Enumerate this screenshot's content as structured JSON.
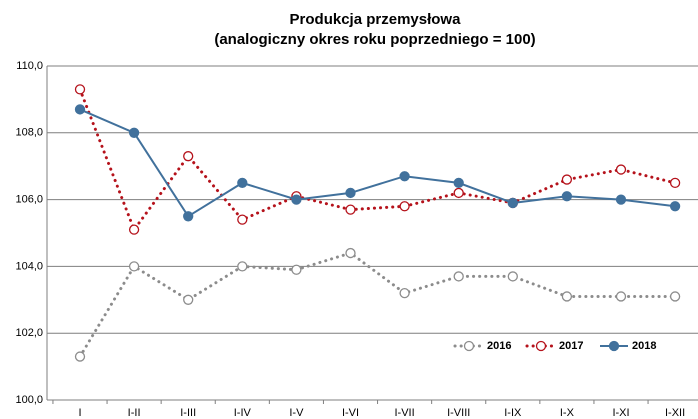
{
  "chart_data": {
    "type": "line",
    "title": "Produkcja przemysłowa",
    "subtitle": "(analogiczny okres roku poprzedniego = 100)",
    "categories": [
      "I",
      "I-II",
      "I-III",
      "I-IV",
      "I-V",
      "I-VI",
      "I-VII",
      "I-VIII",
      "I-IX",
      "I-X",
      "I-XI",
      "I-XII"
    ],
    "series": [
      {
        "name": "2016",
        "color": "#8c8c8c",
        "style": "dotted",
        "filled": false,
        "values": [
          101.3,
          104.0,
          103.0,
          104.0,
          103.9,
          104.4,
          103.2,
          103.7,
          103.7,
          103.1,
          103.1,
          103.1
        ]
      },
      {
        "name": "2017",
        "color": "#b5121b",
        "style": "dotted",
        "filled": false,
        "values": [
          109.3,
          105.1,
          107.3,
          105.4,
          106.1,
          105.7,
          105.8,
          106.2,
          105.9,
          106.6,
          106.9,
          106.5
        ]
      },
      {
        "name": "2018",
        "color": "#41719c",
        "style": "solid",
        "filled": true,
        "values": [
          108.7,
          108.0,
          105.5,
          106.5,
          106.0,
          106.2,
          106.7,
          106.5,
          105.9,
          106.1,
          106.0,
          105.8
        ]
      }
    ],
    "ylim": [
      100,
      110
    ],
    "yticks": [
      {
        "value": 100,
        "label": "100,0"
      },
      {
        "value": 102,
        "label": "102,0"
      },
      {
        "value": 104,
        "label": "104,0"
      },
      {
        "value": 106,
        "label": "106,0"
      },
      {
        "value": 108,
        "label": "108,0"
      },
      {
        "value": 110,
        "label": "110,0"
      }
    ],
    "grid": true,
    "legend": "bottom-right"
  }
}
